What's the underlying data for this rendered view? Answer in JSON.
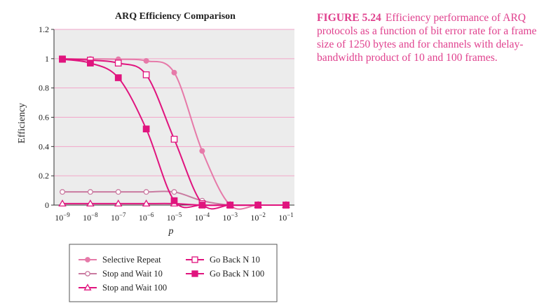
{
  "caption": {
    "label": "FIGURE 5.24",
    "text": "Efficiency performance of ARQ protocols as a function of bit error rate for a frame size of 1250 bytes and for channels with delay-bandwidth product of 10 and 100 frames."
  },
  "colors": {
    "plot_bg": "#ececec",
    "gridline": "#f2a6c9",
    "selective_repeat": "#e67aa9",
    "stop_and_wait_10": "#c97aa0",
    "go_back_n": "#e0147e",
    "stop_and_wait_100": "#e0147e"
  },
  "chart_data": {
    "type": "line",
    "title": "ARQ Efficiency Comparison",
    "xlabel": "p",
    "ylabel": "Efficiency",
    "x_scale": "log",
    "x_ticks": [
      1e-09,
      1e-08,
      1e-07,
      1e-06,
      1e-05,
      0.0001,
      0.001,
      0.01,
      0.1
    ],
    "x_tick_labels": [
      {
        "base": "10",
        "exp": "−9"
      },
      {
        "base": "10",
        "exp": "−8"
      },
      {
        "base": "10",
        "exp": "−7"
      },
      {
        "base": "10",
        "exp": "−6"
      },
      {
        "base": "10",
        "exp": "−5"
      },
      {
        "base": "10",
        "exp": "−4"
      },
      {
        "base": "10",
        "exp": "−3"
      },
      {
        "base": "10",
        "exp": "−2"
      },
      {
        "base": "10",
        "exp": "−1"
      }
    ],
    "xlim": [
      5e-10,
      0.2
    ],
    "ylim": [
      0,
      1.2
    ],
    "y_ticks": [
      0,
      0.2,
      0.4,
      0.6,
      0.8,
      1,
      1.2
    ],
    "y_tick_labels": [
      "0",
      "0.2",
      "0.4",
      "0.6",
      "0.8",
      "1",
      "1.2"
    ],
    "grid": true,
    "legend_position": "bottom",
    "x": [
      1e-09,
      1e-08,
      1e-07,
      1e-06,
      1e-05,
      0.0001,
      0.001,
      0.01,
      0.1
    ],
    "series": [
      {
        "name": "Selective Repeat",
        "marker": "circle",
        "fill": true,
        "color_key": "selective_repeat",
        "values": [
          0.999,
          0.998,
          0.996,
          0.985,
          0.905,
          0.37,
          0.0,
          0.0,
          0.0
        ]
      },
      {
        "name": "Stop and Wait 10",
        "marker": "circle",
        "fill": false,
        "color_key": "stop_and_wait_10",
        "values": [
          0.09,
          0.09,
          0.09,
          0.09,
          0.09,
          0.03,
          0.0,
          0.0,
          0.0
        ]
      },
      {
        "name": "Stop and Wait 100",
        "marker": "triangle",
        "fill": false,
        "color_key": "stop_and_wait_100",
        "values": [
          0.01,
          0.01,
          0.01,
          0.01,
          0.01,
          0.0,
          0.0,
          0.0,
          0.0
        ]
      },
      {
        "name": "Go Back N 10",
        "marker": "square",
        "fill": false,
        "color_key": "go_back_n",
        "values": [
          0.998,
          0.99,
          0.97,
          0.89,
          0.45,
          0.01,
          0.0,
          0.0,
          0.0
        ]
      },
      {
        "name": "Go Back N 100",
        "marker": "square",
        "fill": true,
        "color_key": "go_back_n",
        "values": [
          0.996,
          0.97,
          0.87,
          0.52,
          0.03,
          0.0,
          0.0,
          0.0,
          0.0
        ]
      }
    ]
  }
}
